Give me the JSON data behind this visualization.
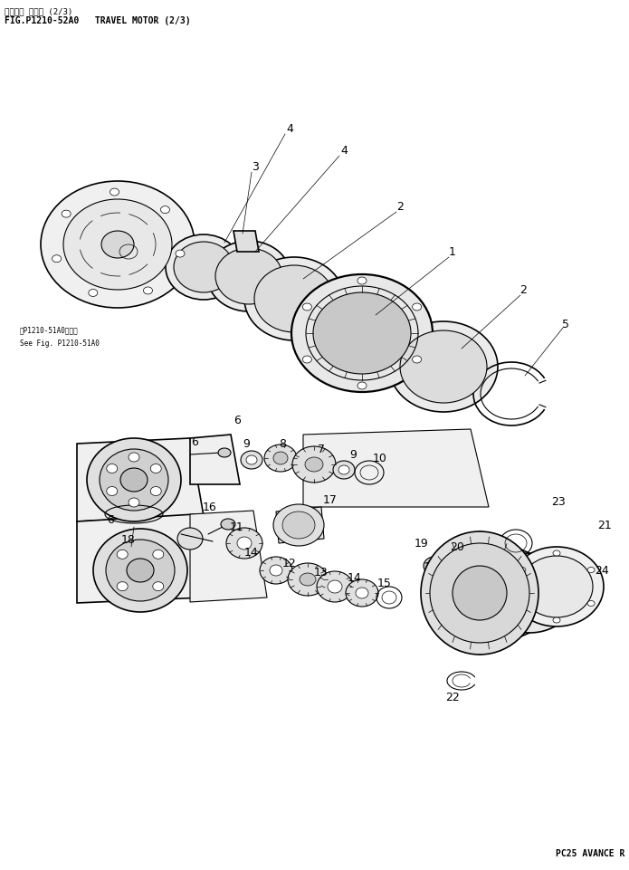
{
  "title_japanese": "サウコウ モータ (2/3)",
  "title_english": "FIG.P1210-52A0   TRAVEL MOTOR (2/3)",
  "footer_text": "PC25 AVANCE R",
  "background_color": "#ffffff",
  "text_color": "#000000",
  "line_color": "#000000",
  "fig_width": 6.95,
  "fig_height": 9.61,
  "dpi": 100
}
